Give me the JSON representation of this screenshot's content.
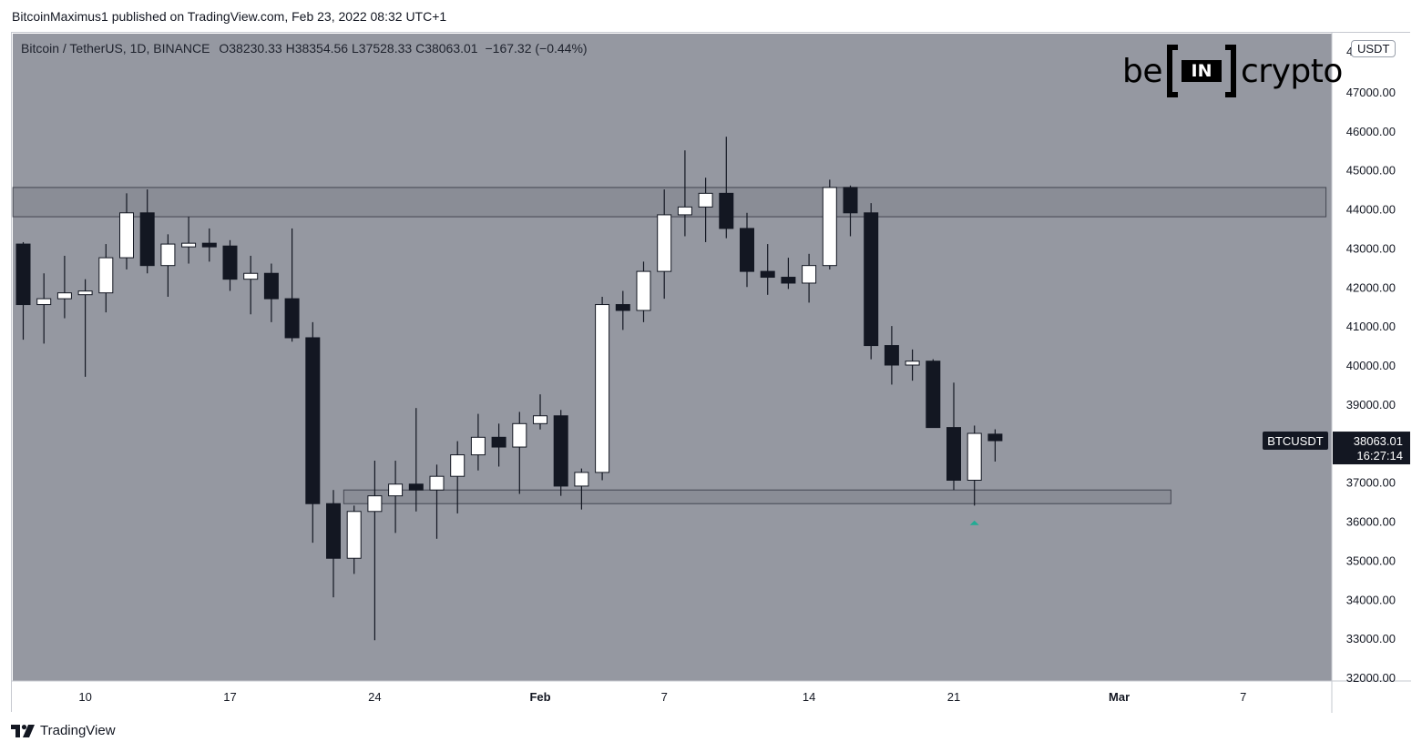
{
  "publisher_line": "BitcoinMaximus1 published on TradingView.com, Feb 23, 2022 08:32 UTC+1",
  "legend": {
    "symbol": "Bitcoin / TetherUS, 1D, BINANCE",
    "open_label": "O",
    "open": "38230.33",
    "high_label": "H",
    "high": "38354.56",
    "low_label": "L",
    "low": "37528.33",
    "close_label": "C",
    "close": "38063.01",
    "change": "−167.32 (−0.44%)"
  },
  "logo": {
    "left": "be",
    "box": "IN",
    "right": "crypto"
  },
  "currency_badge": "USDT",
  "footer_brand": "TradingView",
  "colors": {
    "plot_background": "#9598a1",
    "bull_body": "#ffffff",
    "bear_body": "#131722",
    "wick": "#131722",
    "zone_fill": "#888b94",
    "zone_stroke": "#434651",
    "price_tag_bg": "#131722",
    "price_tag_text": "#ffffff",
    "signal_arrow": "#22ab94"
  },
  "chart_data": {
    "type": "candlestick",
    "ylim": [
      32000,
      48000
    ],
    "yticks": [
      32000,
      33000,
      34000,
      35000,
      36000,
      37000,
      38000,
      39000,
      40000,
      41000,
      42000,
      43000,
      44000,
      45000,
      46000,
      47000
    ],
    "y_tick_labels": [
      "32000.00",
      "33000.00",
      "34000.00",
      "35000.00",
      "36000.00",
      "37000.00",
      "38000.00",
      "39000.00",
      "40000.00",
      "41000.00",
      "42000.00",
      "43000.00",
      "44000.00",
      "45000.00",
      "46000.00",
      "47000.00"
    ],
    "top_tick_partial": "4",
    "x_labels": [
      {
        "label": "10",
        "day": 9,
        "bold": false
      },
      {
        "label": "17",
        "day": 16,
        "bold": false
      },
      {
        "label": "24",
        "day": 23,
        "bold": false
      },
      {
        "label": "Feb",
        "day": 31,
        "bold": true
      },
      {
        "label": "7",
        "day": 37,
        "bold": false
      },
      {
        "label": "14",
        "day": 44,
        "bold": false
      },
      {
        "label": "21",
        "day": 51,
        "bold": false
      },
      {
        "label": "Mar",
        "day": 59,
        "bold": true
      },
      {
        "label": "7",
        "day": 65,
        "bold": false
      }
    ],
    "x_range_days": [
      5.5,
      69
    ],
    "candles": [
      {
        "d": 6,
        "o": 43100,
        "h": 43150,
        "l": 40650,
        "c": 41550
      },
      {
        "d": 7,
        "o": 41550,
        "h": 42350,
        "l": 40550,
        "c": 41700
      },
      {
        "d": 8,
        "o": 41700,
        "h": 42800,
        "l": 41200,
        "c": 41850
      },
      {
        "d": 9,
        "o": 41850,
        "h": 42200,
        "l": 39700,
        "c": 41850
      },
      {
        "d": 10,
        "o": 41850,
        "h": 43100,
        "l": 41350,
        "c": 42750
      },
      {
        "d": 11,
        "o": 42750,
        "h": 44400,
        "l": 42450,
        "c": 43900
      },
      {
        "d": 12,
        "o": 43900,
        "h": 44500,
        "l": 42350,
        "c": 42550
      },
      {
        "d": 13,
        "o": 42550,
        "h": 43350,
        "l": 41750,
        "c": 43100
      },
      {
        "d": 14,
        "o": 43050,
        "h": 43800,
        "l": 42600,
        "c": 43100
      },
      {
        "d": 15,
        "o": 43100,
        "h": 43500,
        "l": 42650,
        "c": 43050
      },
      {
        "d": 16,
        "o": 43050,
        "h": 43200,
        "l": 41900,
        "c": 42200
      },
      {
        "d": 17,
        "o": 42200,
        "h": 42800,
        "l": 41300,
        "c": 42350
      },
      {
        "d": 18,
        "o": 42350,
        "h": 42600,
        "l": 41100,
        "c": 41700
      },
      {
        "d": 19,
        "o": 41700,
        "h": 43500,
        "l": 40600,
        "c": 40700
      },
      {
        "d": 20,
        "o": 40700,
        "h": 41100,
        "l": 35450,
        "c": 36450
      },
      {
        "d": 21,
        "o": 36450,
        "h": 36800,
        "l": 34050,
        "c": 35050
      },
      {
        "d": 22,
        "o": 35050,
        "h": 36400,
        "l": 34650,
        "c": 36250
      },
      {
        "d": 23,
        "o": 36250,
        "h": 37550,
        "l": 32950,
        "c": 36650
      },
      {
        "d": 24,
        "o": 36650,
        "h": 37550,
        "l": 35700,
        "c": 36950
      },
      {
        "d": 25,
        "o": 36950,
        "h": 38900,
        "l": 36250,
        "c": 36800
      },
      {
        "d": 26,
        "o": 36800,
        "h": 37450,
        "l": 35550,
        "c": 37150
      },
      {
        "d": 27,
        "o": 37150,
        "h": 38050,
        "l": 36200,
        "c": 37700
      },
      {
        "d": 28,
        "o": 37700,
        "h": 38750,
        "l": 37300,
        "c": 38150
      },
      {
        "d": 29,
        "o": 38150,
        "h": 38500,
        "l": 37400,
        "c": 37900
      },
      {
        "d": 30,
        "o": 37900,
        "h": 38800,
        "l": 36700,
        "c": 38500
      },
      {
        "d": 31,
        "o": 38500,
        "h": 39250,
        "l": 38350,
        "c": 38700
      },
      {
        "d": 32,
        "o": 38700,
        "h": 38850,
        "l": 36650,
        "c": 36900
      },
      {
        "d": 33,
        "o": 36900,
        "h": 37350,
        "l": 36300,
        "c": 37250
      },
      {
        "d": 34,
        "o": 37250,
        "h": 41750,
        "l": 37050,
        "c": 41550
      },
      {
        "d": 35,
        "o": 41550,
        "h": 41900,
        "l": 40900,
        "c": 41400
      },
      {
        "d": 36,
        "o": 41400,
        "h": 42650,
        "l": 41100,
        "c": 42400
      },
      {
        "d": 37,
        "o": 42400,
        "h": 44500,
        "l": 41700,
        "c": 43850
      },
      {
        "d": 38,
        "o": 43850,
        "h": 45500,
        "l": 43300,
        "c": 44050
      },
      {
        "d": 39,
        "o": 44050,
        "h": 44800,
        "l": 43150,
        "c": 44400
      },
      {
        "d": 40,
        "o": 44400,
        "h": 45850,
        "l": 43250,
        "c": 43500
      },
      {
        "d": 41,
        "o": 43500,
        "h": 43900,
        "l": 42000,
        "c": 42400
      },
      {
        "d": 42,
        "o": 42400,
        "h": 43100,
        "l": 41800,
        "c": 42250
      },
      {
        "d": 43,
        "o": 42250,
        "h": 42750,
        "l": 41950,
        "c": 42100
      },
      {
        "d": 44,
        "o": 42100,
        "h": 42850,
        "l": 41600,
        "c": 42550
      },
      {
        "d": 45,
        "o": 42550,
        "h": 44750,
        "l": 42450,
        "c": 44550
      },
      {
        "d": 46,
        "o": 44550,
        "h": 44600,
        "l": 43300,
        "c": 43900
      },
      {
        "d": 47,
        "o": 43900,
        "h": 44150,
        "l": 40150,
        "c": 40500
      },
      {
        "d": 48,
        "o": 40500,
        "h": 41000,
        "l": 39500,
        "c": 40000
      },
      {
        "d": 49,
        "o": 40000,
        "h": 40400,
        "l": 39600,
        "c": 40100
      },
      {
        "d": 50,
        "o": 40100,
        "h": 40150,
        "l": 38400,
        "c": 38400
      },
      {
        "d": 51,
        "o": 38400,
        "h": 39550,
        "l": 36800,
        "c": 37050
      },
      {
        "d": 52,
        "o": 37050,
        "h": 38450,
        "l": 36400,
        "c": 38250
      },
      {
        "d": 53,
        "o": 38230.33,
        "h": 38354.56,
        "l": 37528.33,
        "c": 38063.01
      }
    ],
    "zones": [
      {
        "name": "resistance",
        "from_day": 5.5,
        "to_day": 69,
        "y_low": 43800,
        "y_high": 44550
      },
      {
        "name": "support",
        "from_day": 21.5,
        "to_day": 61.5,
        "y_low": 36450,
        "y_high": 36800
      }
    ],
    "signal_arrow": {
      "day": 52,
      "y": 35970
    },
    "last_price_label": {
      "symbol": "BTCUSDT",
      "price": "38063.01",
      "countdown": "16:27:14",
      "y": 38063.01
    }
  }
}
